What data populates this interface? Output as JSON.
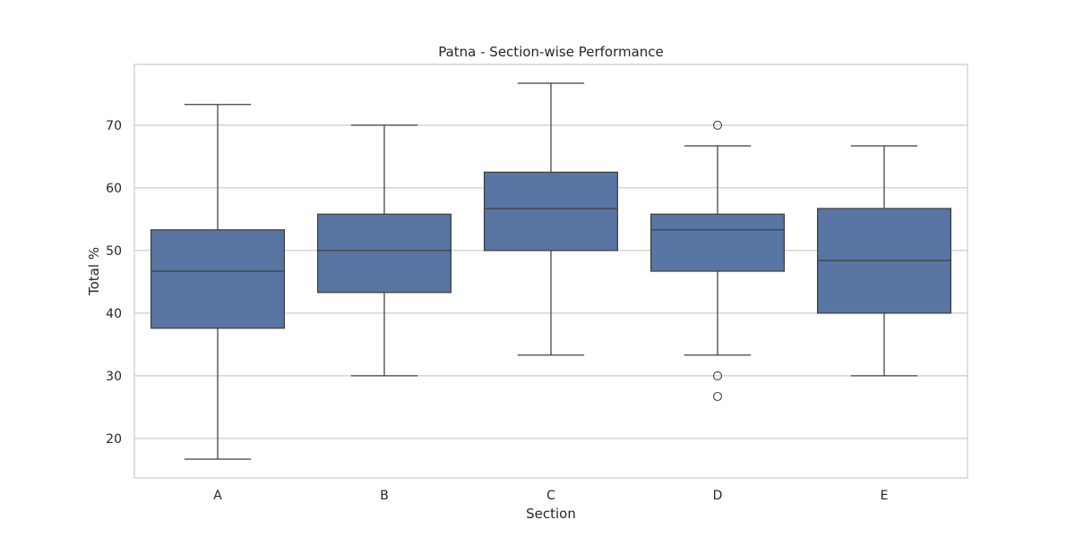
{
  "chart_data": {
    "type": "box",
    "title": "Patna - Section-wise Performance",
    "xlabel": "Section",
    "ylabel": "Total %",
    "ylim": [
      13.7,
      79.7
    ],
    "yticks": [
      20,
      30,
      40,
      50,
      60,
      70
    ],
    "grid": "horizontal",
    "box_color": "#5875a4",
    "line_color": "#3f3f3f",
    "categories": [
      "A",
      "B",
      "C",
      "D",
      "E"
    ],
    "boxes": [
      {
        "category": "A",
        "whisker_low": 16.7,
        "q1": 37.6,
        "median": 46.7,
        "q3": 53.3,
        "whisker_high": 73.3,
        "outliers": []
      },
      {
        "category": "B",
        "whisker_low": 30.0,
        "q1": 43.3,
        "median": 50.0,
        "q3": 55.8,
        "whisker_high": 70.0,
        "outliers": []
      },
      {
        "category": "C",
        "whisker_low": 33.3,
        "q1": 50.0,
        "median": 56.7,
        "q3": 62.5,
        "whisker_high": 76.7,
        "outliers": []
      },
      {
        "category": "D",
        "whisker_low": 33.3,
        "q1": 46.7,
        "median": 53.3,
        "q3": 55.8,
        "whisker_high": 66.7,
        "outliers": [
          70.0,
          30.0,
          26.7
        ]
      },
      {
        "category": "E",
        "whisker_low": 30.0,
        "q1": 40.0,
        "median": 48.4,
        "q3": 56.7,
        "whisker_high": 66.7,
        "outliers": []
      }
    ]
  }
}
